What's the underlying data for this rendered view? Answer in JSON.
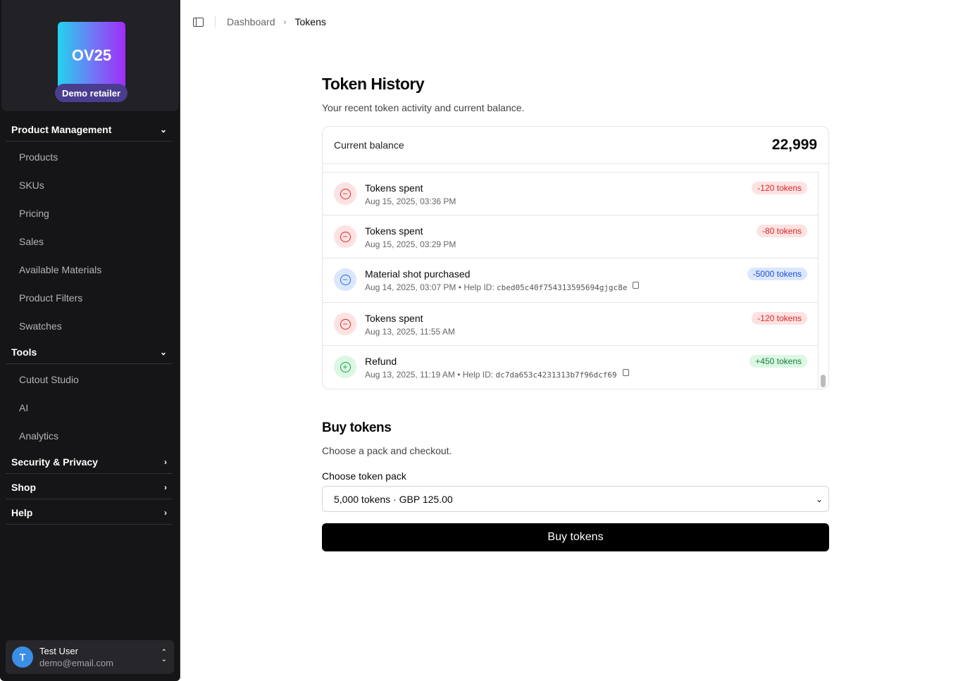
{
  "sidebar": {
    "logo_text": "OV25",
    "retailer": "Demo retailer",
    "groups": [
      {
        "label": "Product Management",
        "items": [
          "Products",
          "SKUs",
          "Pricing",
          "Sales",
          "Available Materials",
          "Product Filters",
          "Swatches"
        ]
      },
      {
        "label": "Tools",
        "items": [
          "Cutout Studio",
          "AI",
          "Analytics"
        ]
      },
      {
        "label": "Security & Privacy"
      },
      {
        "label": "Shop"
      },
      {
        "label": "Help"
      }
    ],
    "user": {
      "initial": "T",
      "name": "Test User",
      "email": "demo@email.com"
    }
  },
  "breadcrumb": [
    "Dashboard",
    "Tokens"
  ],
  "history": {
    "title": "Token History",
    "subtitle": "Your recent token activity and current balance.",
    "balance_label": "Current balance",
    "balance": "22,999",
    "rows": [
      {
        "title": "Tokens spent",
        "date": "Aug 15, 2025, 03:36 PM",
        "amount": "-120 tokens",
        "type": "spent"
      },
      {
        "title": "Tokens spent",
        "date": "Aug 15, 2025, 03:29 PM",
        "amount": "-80 tokens",
        "type": "spent"
      },
      {
        "title": "Material shot purchased",
        "date": "Aug 14, 2025, 03:07 PM",
        "help_label": "Help ID:",
        "help_id": "cbed05c40f754313595694gjgc8e",
        "amount": "-5000 tokens",
        "type": "purchase"
      },
      {
        "title": "Tokens spent",
        "date": "Aug 13, 2025, 11:55 AM",
        "amount": "-120 tokens",
        "type": "spent"
      },
      {
        "title": "Refund",
        "date": "Aug 13, 2025, 11:19 AM",
        "help_label": "Help ID:",
        "help_id": "dc7da653c4231313b7f96dcf69",
        "amount": "+450 tokens",
        "type": "refund"
      }
    ]
  },
  "buy": {
    "title": "Buy tokens",
    "subtitle": "Choose a pack and checkout.",
    "select_label": "Choose token pack",
    "selected": "5,000 tokens · GBP 125.00",
    "button": "Buy tokens"
  },
  "colors": {
    "spent": "#dc2626",
    "purchase": "#2563eb",
    "refund": "#16a34a",
    "button": "#000000"
  }
}
